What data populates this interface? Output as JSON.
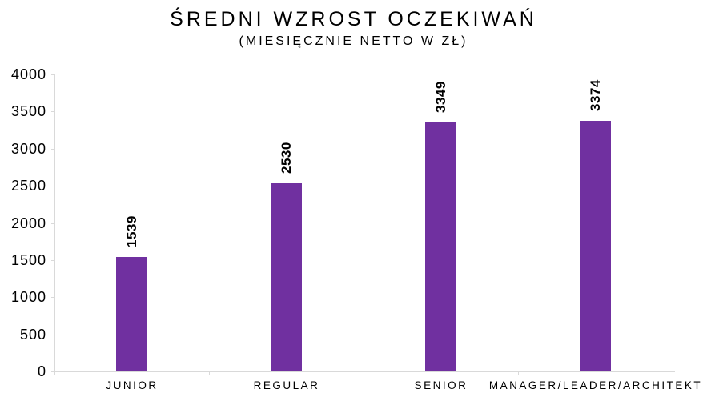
{
  "chart_data": {
    "type": "bar",
    "title": "ŚREDNI WZROST OCZEKIWAŃ",
    "subtitle": "(MIESIĘCZNIE NETTO W ZŁ)",
    "categories": [
      "JUNIOR",
      "REGULAR",
      "SENIOR",
      "MANAGER/LEADER/ARCHITEKT"
    ],
    "values": [
      1539,
      2530,
      3349,
      3374
    ],
    "value_labels": [
      "1539",
      "2530",
      "3349",
      "3374"
    ],
    "xlabel": "",
    "ylabel": "",
    "ylim": [
      0,
      4000
    ],
    "y_ticks": [
      0,
      500,
      1000,
      1500,
      2000,
      2500,
      3000,
      3500,
      4000
    ],
    "y_tick_labels": [
      "0",
      "500",
      "1000",
      "1500",
      "2000",
      "2500",
      "3000",
      "3500",
      "4000"
    ],
    "grid": false,
    "legend": false,
    "value_label_rotation": -90,
    "bar_color": "#7030A0",
    "axis_color": "#D9D9D9",
    "text_color": "#000000",
    "background_color": "#FFFFFF"
  }
}
